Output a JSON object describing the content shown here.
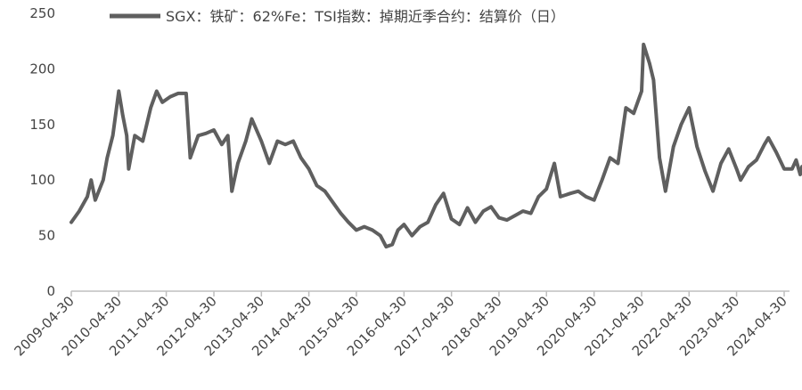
{
  "chart_data": {
    "type": "line",
    "title": "",
    "xlabel": "",
    "ylabel": "",
    "ylim": [
      0,
      250
    ],
    "yticks": [
      0,
      50,
      100,
      150,
      200,
      250
    ],
    "xtick_labels": [
      "2009-04-30",
      "2010-04-30",
      "2011-04-30",
      "2012-04-30",
      "2013-04-30",
      "2014-04-30",
      "2015-04-30",
      "2016-04-30",
      "2017-04-30",
      "2018-04-30",
      "2019-04-30",
      "2020-04-30",
      "2021-04-30",
      "2022-04-30",
      "2023-04-30",
      "2024-04-30"
    ],
    "legend": "top",
    "grid": false,
    "colors": {
      "series": "#5f5f5f",
      "axis": "#bfbfbf",
      "text": "#444444"
    },
    "series": [
      {
        "name": "SGX：铁矿：62%Fe：TSI指数：掉期近季合约：结算价（日）",
        "points": [
          [
            "2009-04-30",
            62
          ],
          [
            "2009-06-30",
            72
          ],
          [
            "2009-08-31",
            85
          ],
          [
            "2009-09-30",
            100
          ],
          [
            "2009-10-31",
            82
          ],
          [
            "2009-12-31",
            100
          ],
          [
            "2010-01-31",
            120
          ],
          [
            "2010-03-15",
            140
          ],
          [
            "2010-04-30",
            180
          ],
          [
            "2010-05-31",
            158
          ],
          [
            "2010-06-30",
            140
          ],
          [
            "2010-07-15",
            110
          ],
          [
            "2010-08-31",
            140
          ],
          [
            "2010-10-31",
            135
          ],
          [
            "2010-12-31",
            165
          ],
          [
            "2011-02-15",
            180
          ],
          [
            "2011-03-31",
            170
          ],
          [
            "2011-05-31",
            175
          ],
          [
            "2011-07-31",
            178
          ],
          [
            "2011-09-30",
            178
          ],
          [
            "2011-10-31",
            120
          ],
          [
            "2011-12-31",
            140
          ],
          [
            "2012-02-29",
            142
          ],
          [
            "2012-04-30",
            145
          ],
          [
            "2012-06-30",
            132
          ],
          [
            "2012-08-15",
            140
          ],
          [
            "2012-09-15",
            90
          ],
          [
            "2012-10-31",
            115
          ],
          [
            "2012-12-31",
            135
          ],
          [
            "2013-02-15",
            155
          ],
          [
            "2013-04-30",
            135
          ],
          [
            "2013-06-30",
            115
          ],
          [
            "2013-08-31",
            135
          ],
          [
            "2013-10-31",
            132
          ],
          [
            "2013-12-31",
            135
          ],
          [
            "2014-02-28",
            120
          ],
          [
            "2014-04-30",
            110
          ],
          [
            "2014-06-30",
            95
          ],
          [
            "2014-08-31",
            90
          ],
          [
            "2014-10-31",
            80
          ],
          [
            "2014-12-31",
            70
          ],
          [
            "2015-02-28",
            62
          ],
          [
            "2015-04-30",
            55
          ],
          [
            "2015-06-30",
            58
          ],
          [
            "2015-08-31",
            55
          ],
          [
            "2015-10-31",
            50
          ],
          [
            "2015-12-15",
            40
          ],
          [
            "2016-01-31",
            42
          ],
          [
            "2016-03-15",
            55
          ],
          [
            "2016-04-30",
            60
          ],
          [
            "2016-06-30",
            50
          ],
          [
            "2016-08-31",
            58
          ],
          [
            "2016-10-31",
            62
          ],
          [
            "2016-12-31",
            78
          ],
          [
            "2017-02-28",
            88
          ],
          [
            "2017-04-30",
            65
          ],
          [
            "2017-06-30",
            60
          ],
          [
            "2017-08-31",
            75
          ],
          [
            "2017-10-31",
            62
          ],
          [
            "2017-12-31",
            72
          ],
          [
            "2018-02-28",
            76
          ],
          [
            "2018-04-30",
            66
          ],
          [
            "2018-06-30",
            64
          ],
          [
            "2018-08-31",
            68
          ],
          [
            "2018-10-31",
            72
          ],
          [
            "2018-12-31",
            70
          ],
          [
            "2019-02-28",
            85
          ],
          [
            "2019-04-30",
            92
          ],
          [
            "2019-06-30",
            115
          ],
          [
            "2019-08-15",
            85
          ],
          [
            "2019-10-31",
            88
          ],
          [
            "2019-12-31",
            90
          ],
          [
            "2020-02-28",
            85
          ],
          [
            "2020-04-30",
            82
          ],
          [
            "2020-06-30",
            100
          ],
          [
            "2020-08-31",
            120
          ],
          [
            "2020-10-31",
            115
          ],
          [
            "2020-12-31",
            165
          ],
          [
            "2021-02-28",
            160
          ],
          [
            "2021-04-30",
            180
          ],
          [
            "2021-05-15",
            222
          ],
          [
            "2021-06-30",
            205
          ],
          [
            "2021-07-31",
            190
          ],
          [
            "2021-09-15",
            120
          ],
          [
            "2021-10-31",
            90
          ],
          [
            "2021-12-31",
            130
          ],
          [
            "2022-02-28",
            150
          ],
          [
            "2022-04-30",
            165
          ],
          [
            "2022-06-30",
            130
          ],
          [
            "2022-08-31",
            108
          ],
          [
            "2022-10-31",
            90
          ],
          [
            "2022-12-31",
            115
          ],
          [
            "2023-02-28",
            128
          ],
          [
            "2023-04-30",
            110
          ],
          [
            "2023-05-31",
            100
          ],
          [
            "2023-07-31",
            112
          ],
          [
            "2023-09-30",
            118
          ],
          [
            "2023-11-30",
            132
          ],
          [
            "2023-12-31",
            138
          ],
          [
            "2024-02-29",
            125
          ],
          [
            "2024-04-30",
            110
          ],
          [
            "2024-06-30",
            110
          ],
          [
            "2024-07-31",
            118
          ],
          [
            "2024-08-31",
            105
          ],
          [
            "2024-09-15",
            112
          ]
        ]
      }
    ]
  }
}
